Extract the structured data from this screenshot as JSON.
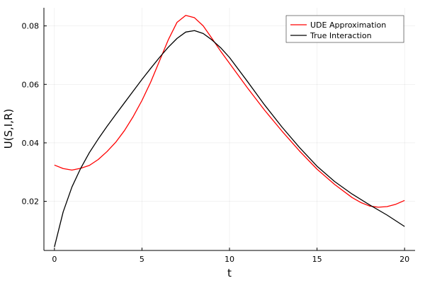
{
  "chart_data": {
    "type": "line",
    "title": "",
    "xlabel": "t",
    "ylabel": "U(S,I,R)",
    "xlim": [
      -0.6,
      20.6
    ],
    "ylim": [
      0.0032,
      0.0862
    ],
    "x_ticks": [
      0,
      5,
      10,
      15,
      20
    ],
    "x_tick_labels": [
      "0",
      "5",
      "10",
      "15",
      "20"
    ],
    "y_ticks": [
      0.02,
      0.04,
      0.06,
      0.08
    ],
    "y_tick_labels": [
      "0.02",
      "0.04",
      "0.06",
      "0.08"
    ],
    "grid": true,
    "legend_position": "top-right",
    "series": [
      {
        "name": "UDE Approximation",
        "color": "#ff0000",
        "points": [
          [
            0.0,
            0.0324
          ],
          [
            0.5,
            0.0312
          ],
          [
            1.0,
            0.0307
          ],
          [
            1.5,
            0.0313
          ],
          [
            2.0,
            0.0323
          ],
          [
            2.5,
            0.0343
          ],
          [
            3.0,
            0.037
          ],
          [
            3.5,
            0.0402
          ],
          [
            4.0,
            0.0442
          ],
          [
            4.5,
            0.049
          ],
          [
            5.0,
            0.0545
          ],
          [
            5.5,
            0.0608
          ],
          [
            6.0,
            0.068
          ],
          [
            6.5,
            0.0752
          ],
          [
            7.0,
            0.0812
          ],
          [
            7.5,
            0.0836
          ],
          [
            8.0,
            0.0828
          ],
          [
            8.5,
            0.08
          ],
          [
            9.0,
            0.0757
          ],
          [
            9.5,
            0.0713
          ],
          [
            10.0,
            0.0672
          ],
          [
            11.0,
            0.059
          ],
          [
            12.0,
            0.0512
          ],
          [
            13.0,
            0.044
          ],
          [
            14.0,
            0.0372
          ],
          [
            15.0,
            0.031
          ],
          [
            16.0,
            0.0258
          ],
          [
            17.0,
            0.0213
          ],
          [
            17.5,
            0.0196
          ],
          [
            18.0,
            0.0184
          ],
          [
            18.5,
            0.018
          ],
          [
            19.0,
            0.0182
          ],
          [
            19.5,
            0.019
          ],
          [
            20.0,
            0.0203
          ]
        ]
      },
      {
        "name": "True Interaction",
        "color": "#000000",
        "points": [
          [
            0.0,
            0.0044
          ],
          [
            0.5,
            0.0164
          ],
          [
            1.0,
            0.0249
          ],
          [
            1.5,
            0.0313
          ],
          [
            2.0,
            0.0367
          ],
          [
            2.5,
            0.0413
          ],
          [
            3.0,
            0.0456
          ],
          [
            3.5,
            0.0497
          ],
          [
            4.0,
            0.0537
          ],
          [
            4.5,
            0.0577
          ],
          [
            5.0,
            0.0617
          ],
          [
            5.5,
            0.0655
          ],
          [
            6.0,
            0.0692
          ],
          [
            6.5,
            0.0727
          ],
          [
            7.0,
            0.0757
          ],
          [
            7.5,
            0.0779
          ],
          [
            8.0,
            0.0784
          ],
          [
            8.5,
            0.0774
          ],
          [
            9.0,
            0.0752
          ],
          [
            9.5,
            0.0725
          ],
          [
            10.0,
            0.0692
          ],
          [
            11.0,
            0.0612
          ],
          [
            12.0,
            0.053
          ],
          [
            13.0,
            0.0454
          ],
          [
            14.0,
            0.0384
          ],
          [
            15.0,
            0.032
          ],
          [
            16.0,
            0.0268
          ],
          [
            17.0,
            0.0225
          ],
          [
            18.0,
            0.0188
          ],
          [
            19.0,
            0.0153
          ],
          [
            20.0,
            0.0114
          ]
        ]
      }
    ]
  }
}
